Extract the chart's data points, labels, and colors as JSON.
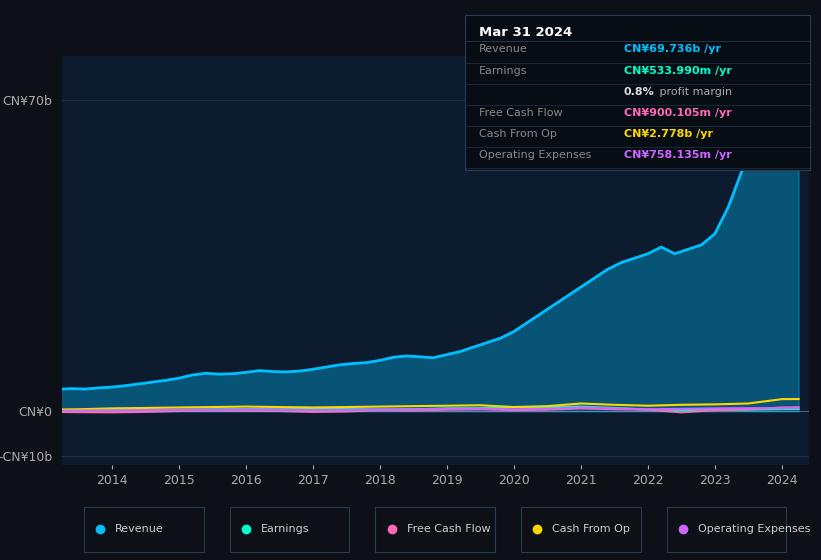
{
  "bg_color": "#0d1117",
  "plot_bg_color": "#0d1b2e",
  "grid_color": "#1e3050",
  "series": {
    "Revenue": {
      "color": "#00bfff",
      "linewidth": 2.0
    },
    "Earnings": {
      "color": "#00ffcc",
      "linewidth": 1.5
    },
    "Free Cash Flow": {
      "color": "#ff69b4",
      "linewidth": 1.5
    },
    "Cash From Op": {
      "color": "#ffd700",
      "linewidth": 1.5
    },
    "Operating Expenses": {
      "color": "#cc66ff",
      "linewidth": 1.5
    }
  },
  "revenue_x": [
    2013.0,
    2013.1,
    2013.2,
    2013.4,
    2013.6,
    2013.8,
    2014.0,
    2014.2,
    2014.4,
    2014.6,
    2014.8,
    2015.0,
    2015.2,
    2015.4,
    2015.6,
    2015.8,
    2016.0,
    2016.2,
    2016.4,
    2016.6,
    2016.8,
    2017.0,
    2017.2,
    2017.4,
    2017.6,
    2017.8,
    2018.0,
    2018.2,
    2018.4,
    2018.6,
    2018.8,
    2019.0,
    2019.2,
    2019.4,
    2019.6,
    2019.8,
    2020.0,
    2020.2,
    2020.4,
    2020.6,
    2020.8,
    2021.0,
    2021.2,
    2021.4,
    2021.6,
    2021.8,
    2022.0,
    2022.2,
    2022.4,
    2022.6,
    2022.8,
    2023.0,
    2023.2,
    2023.4,
    2023.6,
    2023.8,
    2024.0,
    2024.25
  ],
  "revenue_y": [
    5200000000.0,
    5100000000.0,
    5000000000.0,
    5150000000.0,
    5050000000.0,
    5300000000.0,
    5500000000.0,
    5800000000.0,
    6200000000.0,
    6600000000.0,
    7000000000.0,
    7500000000.0,
    8200000000.0,
    8600000000.0,
    8400000000.0,
    8500000000.0,
    8800000000.0,
    9200000000.0,
    9000000000.0,
    8900000000.0,
    9100000000.0,
    9500000000.0,
    10000000000.0,
    10500000000.0,
    10800000000.0,
    11000000000.0,
    11500000000.0,
    12200000000.0,
    12500000000.0,
    12300000000.0,
    12100000000.0,
    12800000000.0,
    13500000000.0,
    14500000000.0,
    15500000000.0,
    16500000000.0,
    18000000000.0,
    20000000000.0,
    22000000000.0,
    24000000000.0,
    26000000000.0,
    28000000000.0,
    30000000000.0,
    32000000000.0,
    33500000000.0,
    34500000000.0,
    35500000000.0,
    37000000000.0,
    35500000000.0,
    36500000000.0,
    37500000000.0,
    40000000000.0,
    46000000000.0,
    54000000000.0,
    62000000000.0,
    67000000000.0,
    69736000000.0,
    70200000000.0
  ],
  "earnings_x": [
    2013.0,
    2013.5,
    2014.0,
    2014.5,
    2015.0,
    2015.5,
    2016.0,
    2016.5,
    2017.0,
    2017.5,
    2018.0,
    2018.5,
    2019.0,
    2019.5,
    2020.0,
    2020.5,
    2021.0,
    2021.5,
    2022.0,
    2022.5,
    2023.0,
    2023.5,
    2024.0,
    2024.25
  ],
  "earnings_y": [
    200000000.0,
    250000000.0,
    300000000.0,
    350000000.0,
    400000000.0,
    500000000.0,
    550000000.0,
    500000000.0,
    600000000.0,
    550000000.0,
    450000000.0,
    500000000.0,
    700000000.0,
    750000000.0,
    900000000.0,
    1000000000.0,
    1100000000.0,
    800000000.0,
    400000000.0,
    300000000.0,
    350000000.0,
    400000000.0,
    534000000.0,
    550000000.0
  ],
  "fcf_x": [
    2013.0,
    2013.5,
    2014.0,
    2014.5,
    2015.0,
    2015.5,
    2016.0,
    2016.5,
    2017.0,
    2017.5,
    2018.0,
    2018.5,
    2019.0,
    2019.5,
    2020.0,
    2020.5,
    2021.0,
    2021.5,
    2022.0,
    2022.5,
    2023.0,
    2023.5,
    2024.0,
    2024.25
  ],
  "fcf_y": [
    -100000000.0,
    -150000000.0,
    -200000000.0,
    -100000000.0,
    100000000.0,
    200000000.0,
    150000000.0,
    100000000.0,
    -100000000.0,
    0.0,
    300000000.0,
    250000000.0,
    400000000.0,
    500000000.0,
    300000000.0,
    400000000.0,
    700000000.0,
    500000000.0,
    400000000.0,
    -200000000.0,
    300000000.0,
    500000000.0,
    900000000.0,
    950000000.0
  ],
  "cashop_x": [
    2013.0,
    2013.5,
    2014.0,
    2014.5,
    2015.0,
    2015.5,
    2016.0,
    2016.5,
    2017.0,
    2017.5,
    2018.0,
    2018.5,
    2019.0,
    2019.5,
    2020.0,
    2020.5,
    2021.0,
    2021.5,
    2022.0,
    2022.5,
    2023.0,
    2023.5,
    2024.0,
    2024.25
  ],
  "cashop_y": [
    400000000.0,
    500000000.0,
    700000000.0,
    800000000.0,
    900000000.0,
    1000000000.0,
    1100000000.0,
    1000000000.0,
    900000000.0,
    1000000000.0,
    1100000000.0,
    1200000000.0,
    1300000000.0,
    1400000000.0,
    1000000000.0,
    1200000000.0,
    1800000000.0,
    1500000000.0,
    1300000000.0,
    1500000000.0,
    1600000000.0,
    1800000000.0,
    2778000000.0,
    2800000000.0
  ],
  "opex_x": [
    2013.0,
    2013.5,
    2014.0,
    2014.5,
    2015.0,
    2015.5,
    2016.0,
    2016.5,
    2017.0,
    2017.5,
    2018.0,
    2018.5,
    2019.0,
    2019.5,
    2020.0,
    2020.5,
    2021.0,
    2021.5,
    2022.0,
    2022.5,
    2023.0,
    2023.5,
    2024.0,
    2024.25
  ],
  "opex_y": [
    150000000.0,
    200000000.0,
    250000000.0,
    300000000.0,
    350000000.0,
    400000000.0,
    450000000.0,
    400000000.0,
    300000000.0,
    350000000.0,
    450000000.0,
    500000000.0,
    600000000.0,
    650000000.0,
    500000000.0,
    600000000.0,
    900000000.0,
    700000000.0,
    500000000.0,
    600000000.0,
    700000000.0,
    750000000.0,
    758000000.0,
    800000000.0
  ],
  "ylim": [
    -12000000000.0,
    80000000000.0
  ],
  "xlim": [
    2013.25,
    2024.4
  ],
  "xticks": [
    2014,
    2015,
    2016,
    2017,
    2018,
    2019,
    2020,
    2021,
    2022,
    2023,
    2024
  ],
  "yticks_vals": [
    -10000000000.0,
    0,
    70000000000.0
  ],
  "ytick_labels": [
    "-CN¥10b",
    "CN¥0",
    "CN¥70b"
  ],
  "tooltip": {
    "title": "Mar 31 2024",
    "rows": [
      {
        "label": "Revenue",
        "value": "CN¥69.736b /yr",
        "value_color": "#00bfff",
        "has_sub": false
      },
      {
        "label": "Earnings",
        "value": "CN¥533.990m /yr",
        "value_color": "#00ffcc",
        "has_sub": true,
        "sub": "0.8% profit margin"
      },
      {
        "label": "Free Cash Flow",
        "value": "CN¥900.105m /yr",
        "value_color": "#ff69b4",
        "has_sub": false
      },
      {
        "label": "Cash From Op",
        "value": "CN¥2.778b /yr",
        "value_color": "#ffd700",
        "has_sub": false
      },
      {
        "label": "Operating Expenses",
        "value": "CN¥758.135m /yr",
        "value_color": "#cc66ff",
        "has_sub": false
      }
    ],
    "bg_color": "#070d14",
    "border_color": "#2a3a50",
    "text_color": "#888888",
    "title_color": "#ffffff"
  },
  "legend": [
    {
      "label": "Revenue",
      "color": "#00bfff"
    },
    {
      "label": "Earnings",
      "color": "#00ffcc"
    },
    {
      "label": "Free Cash Flow",
      "color": "#ff69b4"
    },
    {
      "label": "Cash From Op",
      "color": "#ffd700"
    },
    {
      "label": "Operating Expenses",
      "color": "#cc66ff"
    }
  ]
}
